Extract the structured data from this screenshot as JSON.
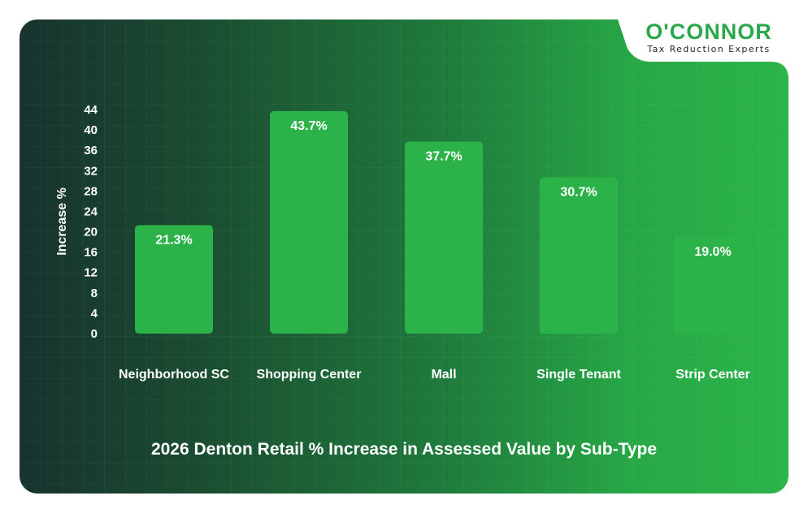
{
  "logo": {
    "name": "O'CONNOR",
    "tagline": "Tax Reduction Experts"
  },
  "colors": {
    "bar": "#2bb34a",
    "logo_green": "#2aa84a",
    "background_dark": "#17332e",
    "background_light": "#2bb44a",
    "text": "#ffffff"
  },
  "chart_data": {
    "type": "bar",
    "title": "2026 Denton Retail % Increase in Assessed Value by Sub-Type",
    "xlabel": "",
    "ylabel": "Increase %",
    "ylim": [
      0,
      44
    ],
    "yticks": [
      0,
      4,
      8,
      12,
      16,
      20,
      24,
      28,
      32,
      36,
      40,
      44
    ],
    "categories": [
      "Neighborhood SC",
      "Shopping Center",
      "Mall",
      "Single Tenant",
      "Strip Center"
    ],
    "values": [
      21.3,
      43.7,
      37.7,
      30.7,
      19.0
    ],
    "data_labels": [
      "21.3%",
      "43.7%",
      "37.7%",
      "30.7%",
      "19.0%"
    ],
    "grid": false,
    "legend": "none"
  }
}
